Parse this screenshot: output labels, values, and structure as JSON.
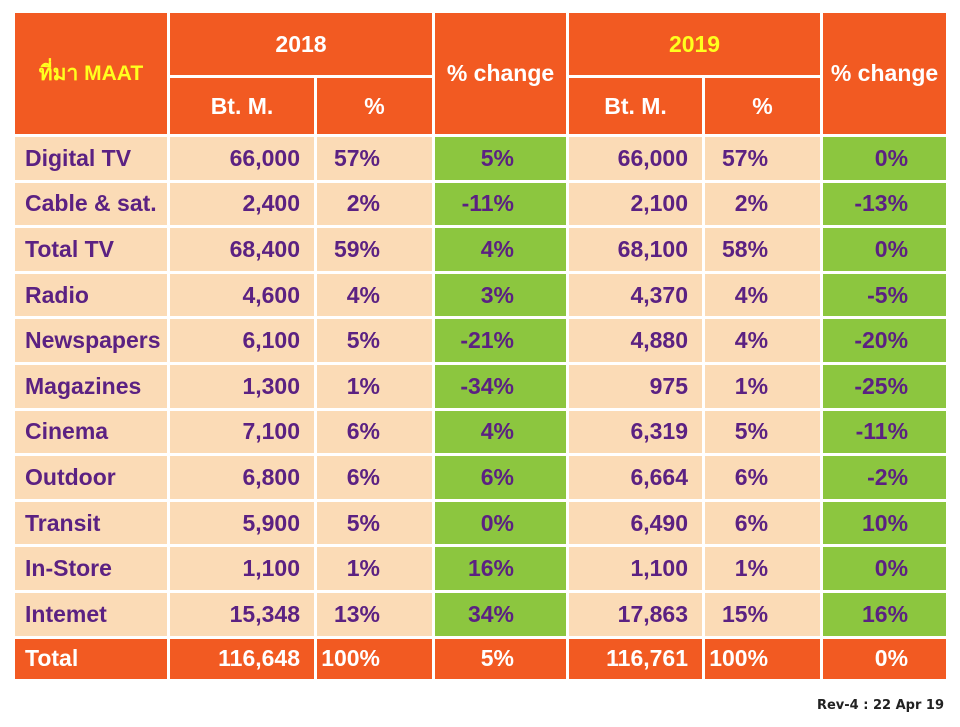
{
  "table": {
    "source_label": "ที่มา MAAT",
    "year_2018": "2018",
    "year_2019": "2019",
    "pct_change_label": "% change",
    "bt_m_label": "Bt.  M.",
    "pct_label": "%"
  },
  "chart_data": {
    "type": "table",
    "columns": [
      "ที่มา MAAT",
      "2018 Bt. M.",
      "2018 %",
      "% change",
      "2019 Bt. M.",
      "2019 %",
      "% change"
    ],
    "rows": [
      {
        "media": "Digital  TV",
        "bt2018": "66,000",
        "pct2018": "57%",
        "chg2018": "5%",
        "bt2019": "66,000",
        "pct2019": "57%",
        "chg2019": "0%"
      },
      {
        "media": "Cable  &  sat.",
        "bt2018": "2,400",
        "pct2018": "2%",
        "chg2018": "-11%",
        "bt2019": "2,100",
        "pct2019": "2%",
        "chg2019": "-13%"
      },
      {
        "media": "Total  TV",
        "bt2018": "68,400",
        "pct2018": "59%",
        "chg2018": "4%",
        "bt2019": "68,100",
        "pct2019": "58%",
        "chg2019": "0%"
      },
      {
        "media": "Radio",
        "bt2018": "4,600",
        "pct2018": "4%",
        "chg2018": "3%",
        "bt2019": "4,370",
        "pct2019": "4%",
        "chg2019": "-5%"
      },
      {
        "media": "Newspapers",
        "bt2018": "6,100",
        "pct2018": "5%",
        "chg2018": "-21%",
        "bt2019": "4,880",
        "pct2019": "4%",
        "chg2019": "-20%"
      },
      {
        "media": "Magazines",
        "bt2018": "1,300",
        "pct2018": "1%",
        "chg2018": "-34%",
        "bt2019": "975",
        "pct2019": "1%",
        "chg2019": "-25%"
      },
      {
        "media": "Cinema",
        "bt2018": "7,100",
        "pct2018": "6%",
        "chg2018": "4%",
        "bt2019": "6,319",
        "pct2019": "5%",
        "chg2019": "-11%"
      },
      {
        "media": "Outdoor",
        "bt2018": "6,800",
        "pct2018": "6%",
        "chg2018": "6%",
        "bt2019": "6,664",
        "pct2019": "6%",
        "chg2019": "-2%"
      },
      {
        "media": "Transit",
        "bt2018": "5,900",
        "pct2018": "5%",
        "chg2018": "0%",
        "bt2019": "6,490",
        "pct2019": "6%",
        "chg2019": "10%"
      },
      {
        "media": "In-Store",
        "bt2018": "1,100",
        "pct2018": "1%",
        "chg2018": "16%",
        "bt2019": "1,100",
        "pct2019": "1%",
        "chg2019": "0%"
      },
      {
        "media": "Intemet",
        "bt2018": "15,348",
        "pct2018": "13%",
        "chg2018": "34%",
        "bt2019": "17,863",
        "pct2019": "15%",
        "chg2019": "16%"
      }
    ],
    "total": {
      "media": "Total",
      "bt2018": "116,648",
      "pct2018": "100%",
      "chg2018": "5%",
      "bt2019": "116,761",
      "pct2019": "100%",
      "chg2019": "0%"
    }
  },
  "footer": {
    "revision": "Rev-4  :  22  Apr  19"
  },
  "colors": {
    "header": "#f25a22",
    "body": "#fbdbb6",
    "change": "#8cc63f",
    "text": "#5b2182",
    "year_highlight": "#ffff1e"
  }
}
